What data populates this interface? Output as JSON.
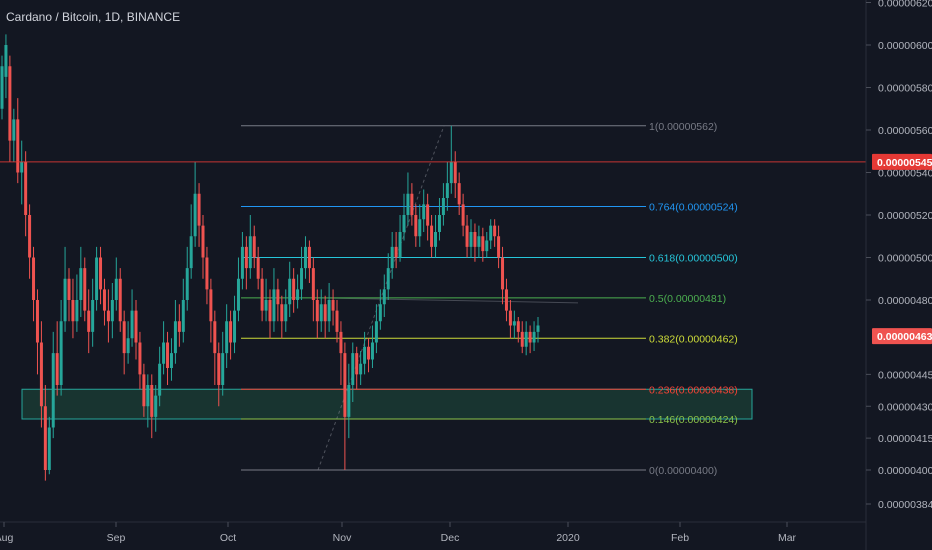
{
  "header": {
    "title": "Cardano / Bitcoin, 1D, BINANCE"
  },
  "colors": {
    "background": "#131722",
    "up": "#26a69a",
    "down": "#ef5350",
    "axis_text": "#b2b5be",
    "resistance": "#e53935",
    "zone_fill": "#1e4d3c",
    "zone_border": "#26a69a"
  },
  "chart_data": {
    "type": "candlestick",
    "pair": "ADA/BTC",
    "interval": "1D",
    "exchange": "BINANCE",
    "y_axis": {
      "ticks": [
        "0.00000620",
        "0.00000600",
        "0.00000580",
        "0.00000560",
        "0.00000540",
        "0.00000520",
        "0.00000500",
        "0.00000480",
        "0.00000445",
        "0.00000430",
        "0.00000415",
        "0.00000400",
        "0.00000384"
      ],
      "tick_values": [
        620,
        600,
        580,
        560,
        540,
        520,
        500,
        480,
        445,
        430,
        415,
        400,
        384
      ]
    },
    "x_axis": {
      "ticks": [
        "Aug",
        "Sep",
        "Oct",
        "Nov",
        "Dec",
        "2020",
        "Feb",
        "Mar"
      ]
    },
    "price_labels": [
      {
        "value": "0.00000545",
        "price": 545,
        "color": "#e53935"
      },
      {
        "value": "0.00000463",
        "price": 463,
        "color": "#ef5350"
      }
    ],
    "fibonacci_levels": [
      {
        "label": "1(0.00000562)",
        "price": 562,
        "color": "#787b86"
      },
      {
        "label": "0.764(0.00000524)",
        "price": 524,
        "color": "#2196f3"
      },
      {
        "label": "0.618(0.00000500)",
        "price": 500,
        "color": "#26c6da"
      },
      {
        "label": "0.5(0.00000481)",
        "price": 481,
        "color": "#4caf50"
      },
      {
        "label": "0.382(0.00000462)",
        "price": 462,
        "color": "#cddc39"
      },
      {
        "label": "0.236(0.00000438)",
        "price": 438,
        "color": "#f44336"
      },
      {
        "label": "0.146(0.00000424)",
        "price": 424,
        "color": "#8bc34a"
      },
      {
        "label": "0(0.00000400)",
        "price": 400,
        "color": "#787b86"
      }
    ],
    "support_zone": {
      "top": 438,
      "bottom": 424
    },
    "resistance_level": 545,
    "candles": [
      [
        570,
        590,
        595,
        565
      ],
      [
        585,
        600,
        605,
        575
      ],
      [
        590,
        555,
        595,
        545
      ],
      [
        555,
        565,
        570,
        545
      ],
      [
        565,
        540,
        575,
        535
      ],
      [
        540,
        545,
        555,
        525
      ],
      [
        545,
        520,
        550,
        510
      ],
      [
        520,
        500,
        525,
        490
      ],
      [
        500,
        480,
        505,
        470
      ],
      [
        480,
        460,
        485,
        445
      ],
      [
        460,
        430,
        470,
        420
      ],
      [
        430,
        400,
        440,
        395
      ],
      [
        400,
        420,
        425,
        398
      ],
      [
        420,
        455,
        465,
        415
      ],
      [
        455,
        440,
        470,
        435
      ],
      [
        440,
        470,
        480,
        435
      ],
      [
        470,
        490,
        505,
        465
      ],
      [
        490,
        480,
        495,
        470
      ],
      [
        480,
        470,
        490,
        462
      ],
      [
        470,
        480,
        492,
        465
      ],
      [
        480,
        495,
        505,
        472
      ],
      [
        495,
        475,
        500,
        470
      ],
      [
        475,
        465,
        485,
        455
      ],
      [
        465,
        480,
        490,
        458
      ],
      [
        480,
        500,
        505,
        475
      ],
      [
        500,
        485,
        505,
        478
      ],
      [
        485,
        475,
        490,
        468
      ],
      [
        475,
        470,
        485,
        460
      ],
      [
        470,
        480,
        488,
        462
      ],
      [
        480,
        490,
        500,
        475
      ],
      [
        490,
        470,
        495,
        465
      ],
      [
        470,
        455,
        475,
        445
      ],
      [
        455,
        462,
        470,
        450
      ],
      [
        462,
        475,
        485,
        458
      ],
      [
        475,
        460,
        480,
        452
      ],
      [
        460,
        445,
        465,
        438
      ],
      [
        445,
        430,
        450,
        425
      ],
      [
        430,
        440,
        445,
        420
      ],
      [
        440,
        425,
        445,
        415
      ],
      [
        425,
        435,
        440,
        418
      ],
      [
        435,
        450,
        458,
        430
      ],
      [
        450,
        460,
        470,
        445
      ],
      [
        460,
        448,
        465,
        440
      ],
      [
        448,
        455,
        462,
        442
      ],
      [
        455,
        470,
        480,
        450
      ],
      [
        470,
        465,
        478,
        458
      ],
      [
        465,
        480,
        490,
        460
      ],
      [
        480,
        495,
        505,
        475
      ],
      [
        495,
        510,
        525,
        490
      ],
      [
        510,
        530,
        545,
        505
      ],
      [
        530,
        515,
        535,
        505
      ],
      [
        515,
        500,
        520,
        490
      ],
      [
        500,
        485,
        505,
        478
      ],
      [
        485,
        470,
        490,
        460
      ],
      [
        470,
        455,
        475,
        440
      ],
      [
        455,
        440,
        460,
        430
      ],
      [
        440,
        455,
        465,
        435
      ],
      [
        455,
        470,
        478,
        448
      ],
      [
        470,
        460,
        475,
        452
      ],
      [
        460,
        475,
        482,
        455
      ],
      [
        475,
        490,
        500,
        470
      ],
      [
        490,
        505,
        512,
        485
      ],
      [
        505,
        495,
        510,
        485
      ],
      [
        495,
        510,
        520,
        490
      ],
      [
        510,
        500,
        515,
        495
      ],
      [
        500,
        490,
        505,
        485
      ],
      [
        490,
        475,
        495,
        470
      ],
      [
        475,
        480,
        490,
        470
      ],
      [
        480,
        470,
        485,
        462
      ],
      [
        470,
        485,
        495,
        465
      ],
      [
        485,
        478,
        490,
        470
      ],
      [
        478,
        470,
        482,
        462
      ],
      [
        470,
        478,
        485,
        465
      ],
      [
        478,
        490,
        498,
        472
      ],
      [
        490,
        480,
        495,
        474
      ],
      [
        480,
        485,
        492,
        476
      ],
      [
        485,
        495,
        505,
        480
      ],
      [
        495,
        505,
        510,
        490
      ],
      [
        505,
        495,
        508,
        488
      ],
      [
        495,
        480,
        500,
        470
      ],
      [
        480,
        470,
        485,
        462
      ],
      [
        470,
        478,
        485,
        465
      ],
      [
        478,
        470,
        482,
        462
      ],
      [
        470,
        480,
        488,
        465
      ],
      [
        480,
        475,
        485,
        468
      ],
      [
        475,
        465,
        480,
        460
      ],
      [
        465,
        455,
        470,
        440
      ],
      [
        455,
        425,
        460,
        400
      ],
      [
        425,
        440,
        450,
        415
      ],
      [
        440,
        455,
        460,
        432
      ],
      [
        455,
        445,
        458,
        438
      ],
      [
        445,
        450,
        456,
        440
      ],
      [
        450,
        458,
        465,
        445
      ],
      [
        458,
        452,
        462,
        446
      ],
      [
        452,
        460,
        468,
        448
      ],
      [
        460,
        470,
        478,
        455
      ],
      [
        470,
        478,
        485,
        466
      ],
      [
        478,
        485,
        492,
        472
      ],
      [
        485,
        495,
        502,
        480
      ],
      [
        495,
        505,
        512,
        490
      ],
      [
        505,
        500,
        512,
        495
      ],
      [
        500,
        512,
        520,
        498
      ],
      [
        512,
        520,
        530,
        508
      ],
      [
        520,
        530,
        540,
        515
      ],
      [
        530,
        520,
        535,
        515
      ],
      [
        520,
        510,
        525,
        505
      ],
      [
        510,
        518,
        525,
        505
      ],
      [
        518,
        525,
        532,
        512
      ],
      [
        525,
        515,
        530,
        508
      ],
      [
        515,
        505,
        520,
        500
      ],
      [
        505,
        512,
        520,
        500
      ],
      [
        512,
        520,
        528,
        508
      ],
      [
        520,
        528,
        535,
        515
      ],
      [
        528,
        535,
        545,
        522
      ],
      [
        535,
        545,
        562,
        530
      ],
      [
        545,
        535,
        550,
        528
      ],
      [
        535,
        525,
        540,
        520
      ],
      [
        525,
        515,
        530,
        510
      ],
      [
        515,
        505,
        520,
        500
      ],
      [
        505,
        512,
        518,
        500
      ],
      [
        512,
        505,
        516,
        498
      ],
      [
        505,
        510,
        515,
        500
      ],
      [
        510,
        503,
        514,
        498
      ],
      [
        503,
        508,
        512,
        500
      ],
      [
        508,
        515,
        518,
        504
      ],
      [
        515,
        510,
        518,
        505
      ],
      [
        510,
        500,
        515,
        495
      ],
      [
        500,
        485,
        505,
        478
      ],
      [
        485,
        475,
        490,
        470
      ],
      [
        475,
        468,
        480,
        462
      ],
      [
        468,
        470,
        475,
        462
      ],
      [
        470,
        465,
        472,
        460
      ],
      [
        465,
        458,
        470,
        455
      ],
      [
        458,
        465,
        470,
        454
      ],
      [
        465,
        460,
        468,
        455
      ],
      [
        460,
        465,
        470,
        456
      ],
      [
        465,
        468,
        472,
        460
      ]
    ]
  }
}
